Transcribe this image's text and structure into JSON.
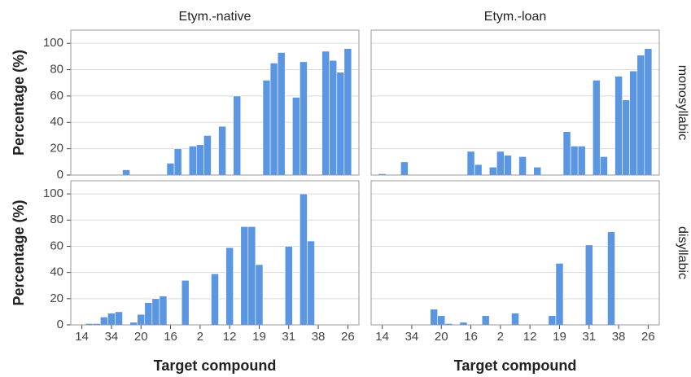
{
  "chart_data": [
    {
      "type": "bar",
      "column_title": "Etym.-native",
      "ylabel": "Percentage (%)",
      "color": "#5b96e3",
      "values": [
        0,
        0,
        0,
        0,
        0,
        0,
        0,
        4,
        0,
        0,
        0,
        0,
        0,
        9,
        20,
        0,
        22,
        23,
        30,
        0,
        37,
        0,
        60,
        0,
        0,
        0,
        72,
        85,
        93,
        0,
        59,
        86,
        0,
        0,
        94,
        87,
        78,
        96,
        0
      ],
      "ylim": [
        0,
        110
      ],
      "yticks": [
        0,
        20,
        40,
        60,
        80,
        100
      ],
      "grid": true
    },
    {
      "type": "bar",
      "column_title": "Etym.-loan",
      "row_title": "monosyllabic",
      "color": "#5b96e3",
      "values": [
        0,
        1,
        0,
        0,
        10,
        0,
        0,
        0,
        0,
        0,
        0,
        0,
        0,
        18,
        8,
        0,
        6,
        18,
        15,
        0,
        14,
        0,
        6,
        0,
        0,
        0,
        33,
        22,
        22,
        0,
        72,
        14,
        0,
        75,
        57,
        79,
        91,
        96,
        0
      ],
      "ylim": [
        0,
        110
      ],
      "yticks": [
        0,
        20,
        40,
        60,
        80,
        100
      ],
      "grid": true
    },
    {
      "type": "bar",
      "ylabel": "Percentage (%)",
      "xlabel": "Target compound",
      "color": "#5b96e3",
      "categories": [
        null,
        "14",
        null,
        null,
        null,
        "34",
        null,
        null,
        null,
        "20",
        null,
        null,
        null,
        "16",
        null,
        null,
        null,
        "2",
        null,
        null,
        null,
        "12",
        null,
        null,
        null,
        "19",
        null,
        null,
        null,
        "31",
        null,
        null,
        null,
        "38",
        null,
        null,
        null,
        "26",
        null
      ],
      "values": [
        0,
        0,
        1,
        1,
        6,
        9,
        10,
        0,
        2,
        8,
        17,
        20,
        22,
        0,
        0,
        34,
        0,
        0,
        0,
        39,
        0,
        59,
        0,
        75,
        75,
        46,
        0,
        0,
        0,
        60,
        0,
        100,
        64,
        0,
        0,
        0,
        0,
        0,
        0
      ],
      "ylim": [
        0,
        110
      ],
      "yticks": [
        0,
        20,
        40,
        60,
        80,
        100
      ],
      "grid": true
    },
    {
      "type": "bar",
      "row_title": "disyllabic",
      "xlabel": "Target compound",
      "color": "#5b96e3",
      "categories": [
        null,
        "14",
        null,
        null,
        null,
        "34",
        null,
        null,
        null,
        "20",
        null,
        null,
        null,
        "16",
        null,
        null,
        null,
        "2",
        null,
        null,
        null,
        "12",
        null,
        null,
        null,
        "19",
        null,
        null,
        null,
        "31",
        null,
        null,
        null,
        "38",
        null,
        null,
        null,
        "26",
        null
      ],
      "values": [
        0,
        0,
        0,
        0,
        0,
        0,
        0,
        0,
        12,
        7,
        1,
        0,
        2,
        0,
        0,
        7,
        0,
        0,
        0,
        9,
        0,
        0,
        0,
        0,
        7,
        47,
        0,
        0,
        0,
        61,
        0,
        0,
        71,
        0,
        0,
        0,
        0,
        0,
        0
      ],
      "ylim": [
        0,
        110
      ],
      "yticks": [
        0,
        20,
        40,
        60,
        80,
        100
      ],
      "grid": true
    }
  ]
}
